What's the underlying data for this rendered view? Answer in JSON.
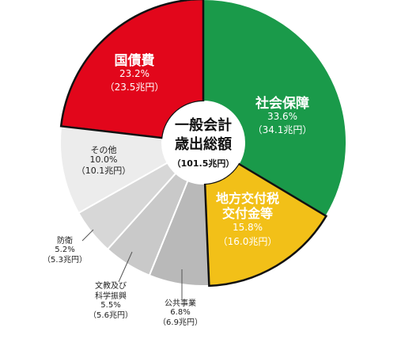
{
  "chart_data": {
    "type": "pie",
    "style": "donut",
    "title": "",
    "center_label": {
      "line1": "一般会計",
      "line2": "歳出総額",
      "line3": "（101.5兆円）"
    },
    "total": {
      "value": 101.5,
      "unit": "兆円"
    },
    "slices": [
      {
        "name": "社会保障",
        "percent": 33.6,
        "percent_text": "33.6%",
        "amount": 34.1,
        "amount_text": "（34.1兆円）",
        "color": "#1a9a4a"
      },
      {
        "name": "地方交付税交付金等",
        "name_lines": [
          "地方交付税",
          "交付金等"
        ],
        "percent": 15.8,
        "percent_text": "15.8%",
        "amount": 16.0,
        "amount_text": "（16.0兆円）",
        "color": "#f2c018"
      },
      {
        "name": "公共事業",
        "percent": 6.8,
        "percent_text": "6.8%",
        "amount": 6.9,
        "amount_text": "（6.9兆円）",
        "color": "#b9b9b9"
      },
      {
        "name": "文教及び科学振興",
        "name_lines": [
          "文教及び",
          "科学振興"
        ],
        "percent": 5.5,
        "percent_text": "5.5%",
        "amount": 5.6,
        "amount_text": "（5.6兆円）",
        "color": "#c9c9c9"
      },
      {
        "name": "防衛",
        "percent": 5.2,
        "percent_text": "5.2%",
        "amount": 5.3,
        "amount_text": "（5.3兆円）",
        "color": "#d7d7d7"
      },
      {
        "name": "その他",
        "percent": 10.0,
        "percent_text": "10.0%",
        "amount": 10.1,
        "amount_text": "（10.1兆円）",
        "color": "#ececec"
      },
      {
        "name": "国債費",
        "percent": 23.2,
        "percent_text": "23.2%",
        "amount": 23.5,
        "amount_text": "（23.5兆円）",
        "color": "#e2061b"
      }
    ],
    "start_angle_deg": 0,
    "direction": "clockwise",
    "legend": "none",
    "emphasized_slices": [
      "地方交付税交付金等",
      "国債費"
    ]
  }
}
